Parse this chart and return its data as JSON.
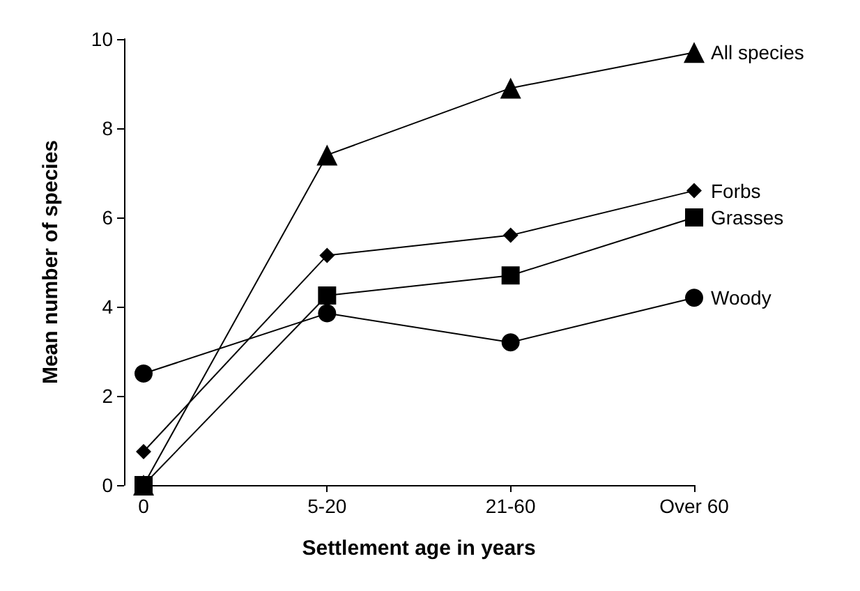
{
  "chart_data": {
    "type": "line",
    "xlabel": "Settlement age in years",
    "ylabel": "Mean number of species",
    "categories": [
      "0",
      "5-20",
      "21-60",
      "Over 60"
    ],
    "ylim": [
      0,
      10
    ],
    "yticks": [
      0,
      2,
      4,
      6,
      8,
      10
    ],
    "grid": false,
    "legend": false,
    "line_style": "solid",
    "series": [
      {
        "name": "All species",
        "color": "#000000",
        "marker": "triangle",
        "values": [
          0,
          7.4,
          8.9,
          9.7
        ]
      },
      {
        "name": "Forbs",
        "color": "#000000",
        "marker": "diamond",
        "values": [
          0.75,
          5.15,
          5.6,
          6.6
        ]
      },
      {
        "name": "Grasses",
        "color": "#000000",
        "marker": "square",
        "values": [
          0,
          4.25,
          4.7,
          6.0
        ]
      },
      {
        "name": "Woody",
        "color": "#000000",
        "marker": "circle",
        "values": [
          2.5,
          3.85,
          3.2,
          4.2
        ]
      }
    ]
  }
}
